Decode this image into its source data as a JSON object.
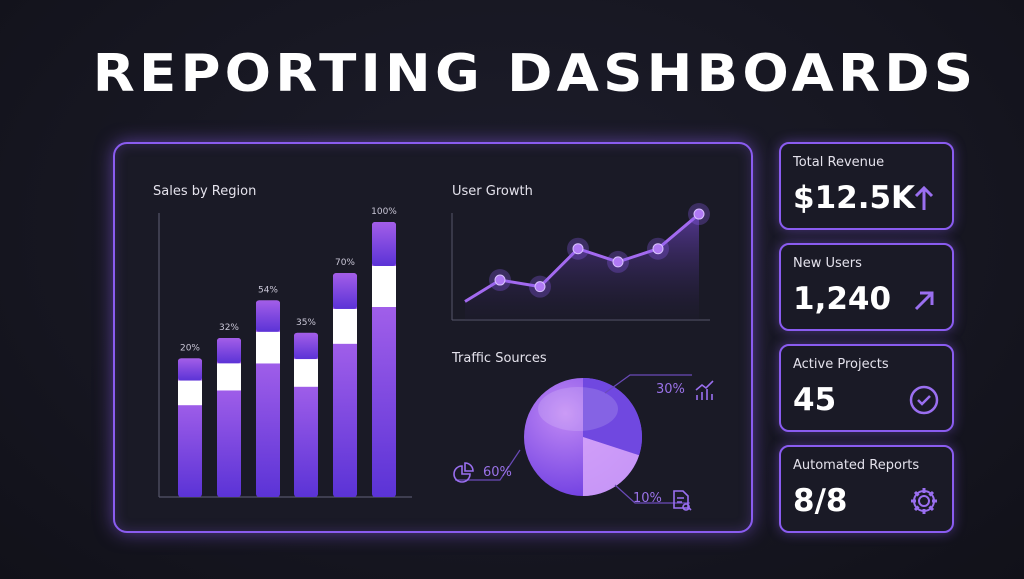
{
  "page_title": "REPORTING DASHBOARDS",
  "main_panel": {
    "sales_title": "Sales by Region",
    "growth_title": "User Growth",
    "traffic_title": "Traffic Sources"
  },
  "chart_data": [
    {
      "type": "bar",
      "title": "Sales by Region",
      "categories": [
        "",
        "",
        "",
        "",
        "",
        ""
      ],
      "values": [
        20,
        32,
        54,
        35,
        70,
        100
      ],
      "data_labels": [
        "20%",
        "32%",
        "54%",
        "35%",
        "70%",
        "100%"
      ]
    },
    {
      "type": "line",
      "title": "User Growth",
      "values": [
        1,
        2.3,
        1.9,
        4.2,
        3.4,
        4.2,
        6.3
      ]
    },
    {
      "type": "pie",
      "title": "Traffic Sources",
      "values": [
        60,
        30,
        10
      ],
      "data_labels": [
        "60%",
        "30%",
        "10%"
      ],
      "icons": [
        "pie-chart-icon",
        "growth-chart-icon",
        "document-search-icon"
      ]
    }
  ],
  "cards": [
    {
      "label": "Total Revenue",
      "value": "$12.5K",
      "icon": "arrow-up-icon"
    },
    {
      "label": "New Users",
      "value": "1,240",
      "icon": "arrow-up-right-icon"
    },
    {
      "label": "Active Projects",
      "value": "45",
      "icon": "check-circle-icon"
    },
    {
      "label": "Automated Reports",
      "value": "8/8",
      "icon": "gear-icon"
    }
  ],
  "colors": {
    "accent": "#8a5cf0",
    "bar_light": "#b86ff0",
    "bar_dark": "#5f35d8",
    "background": "#15151f"
  }
}
